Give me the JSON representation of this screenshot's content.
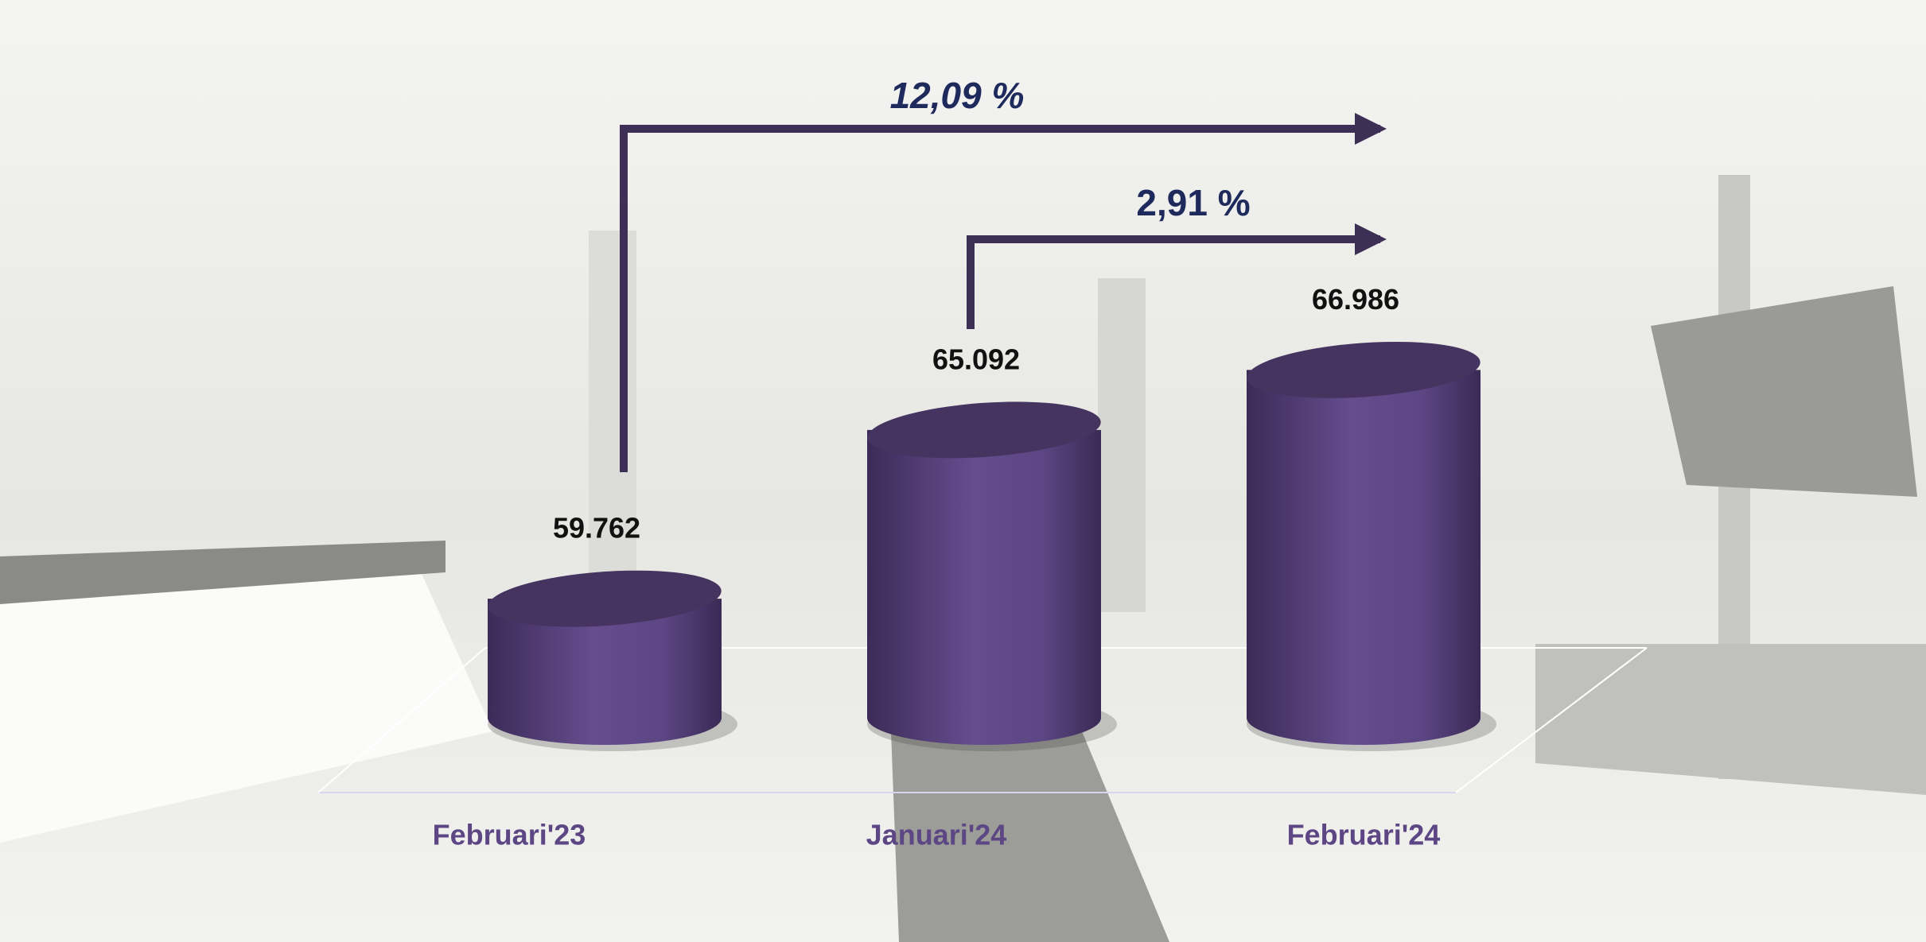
{
  "chart_data": {
    "type": "cylinder-bar",
    "categories": [
      "Februari'23",
      "Januari'24",
      "Februari'24"
    ],
    "values": [
      59762,
      65092,
      66986
    ],
    "value_labels": [
      "59.762",
      "65.092",
      "66.986"
    ],
    "color": "#5c4684",
    "ylim": [
      56000,
      68000
    ],
    "annotations": [
      "12,09 %",
      "2,91 %"
    ]
  }
}
